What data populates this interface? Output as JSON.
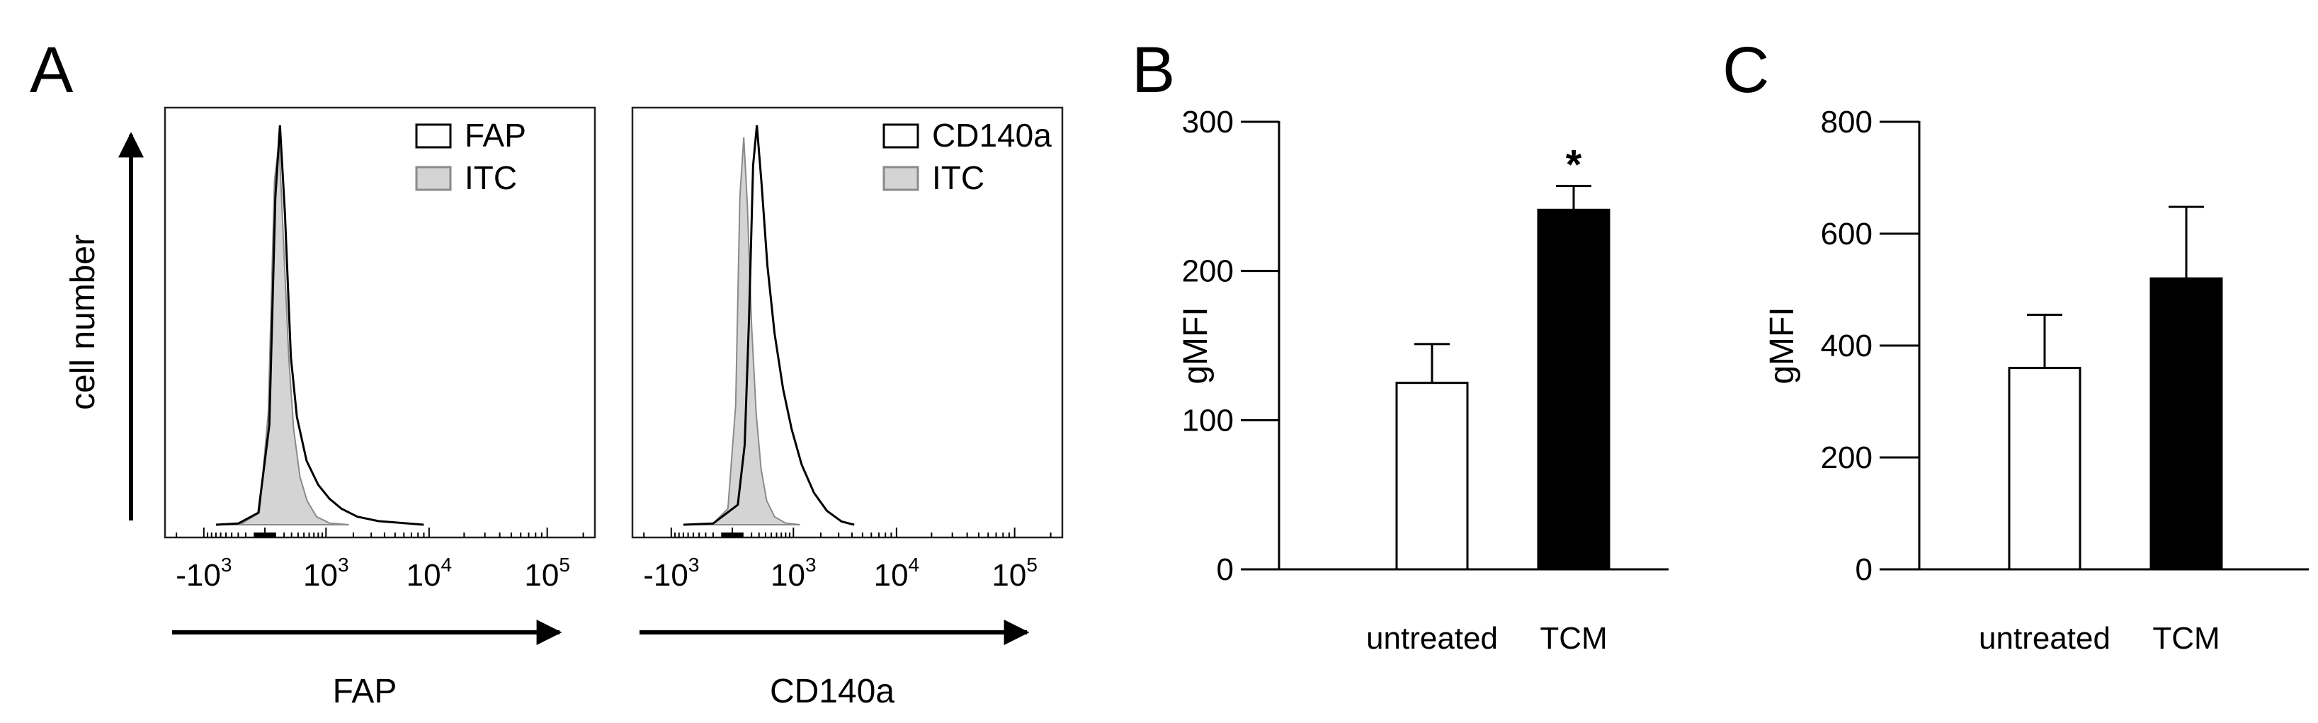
{
  "panels": {
    "A": {
      "letter": "A"
    },
    "B": {
      "letter": "B"
    },
    "C": {
      "letter": "C"
    }
  },
  "chart_data": [
    {
      "panel": "A",
      "id": "hist-fap",
      "type": "histogram",
      "xlabel": "FAP",
      "ylabel": "cell number",
      "x_ticks": [
        {
          "base": "-10",
          "exp": "3",
          "value": -1000
        },
        {
          "base": "10",
          "exp": "3",
          "value": 1000
        },
        {
          "base": "10",
          "exp": "4",
          "value": 10000
        },
        {
          "base": "10",
          "exp": "5",
          "value": 100000
        }
      ],
      "legend": [
        {
          "label": "FAP",
          "style": "open"
        },
        {
          "label": "ITC",
          "style": "filled-gray"
        }
      ],
      "series": [
        {
          "name": "FAP",
          "style": "open",
          "peak_x": 150,
          "peak_y": 1.0,
          "curve": [
            [
              -700,
              0.0
            ],
            [
              -300,
              0.003
            ],
            [
              -60,
              0.03
            ],
            [
              40,
              0.25
            ],
            [
              100,
              0.82
            ],
            [
              150,
              1.0
            ],
            [
              210,
              0.78
            ],
            [
              290,
              0.42
            ],
            [
              380,
              0.27
            ],
            [
              550,
              0.16
            ],
            [
              800,
              0.1
            ],
            [
              1100,
              0.065
            ],
            [
              1500,
              0.04
            ],
            [
              2200,
              0.02
            ],
            [
              3500,
              0.009
            ],
            [
              6000,
              0.004
            ],
            [
              9000,
              0.0
            ]
          ]
        },
        {
          "name": "ITC",
          "style": "filled-gray",
          "peak_x": 140,
          "peak_y": 0.96,
          "curve": [
            [
              -600,
              0.0
            ],
            [
              -250,
              0.003
            ],
            [
              -50,
              0.03
            ],
            [
              30,
              0.28
            ],
            [
              90,
              0.86
            ],
            [
              140,
              0.96
            ],
            [
              190,
              0.72
            ],
            [
              260,
              0.42
            ],
            [
              330,
              0.24
            ],
            [
              430,
              0.12
            ],
            [
              560,
              0.06
            ],
            [
              760,
              0.02
            ],
            [
              1100,
              0.004
            ],
            [
              1800,
              0.0
            ]
          ]
        }
      ]
    },
    {
      "panel": "A",
      "id": "hist-cd140a",
      "type": "histogram",
      "xlabel": "CD140a",
      "ylabel": "",
      "x_ticks": [
        {
          "base": "-10",
          "exp": "3",
          "value": -1000
        },
        {
          "base": "10",
          "exp": "3",
          "value": 1000
        },
        {
          "base": "10",
          "exp": "4",
          "value": 10000
        },
        {
          "base": "10",
          "exp": "5",
          "value": 100000
        }
      ],
      "legend": [
        {
          "label": "CD140a",
          "style": "open"
        },
        {
          "label": "ITC",
          "style": "filled-gray"
        }
      ],
      "series": [
        {
          "name": "CD140a",
          "style": "open",
          "peak_x": 270,
          "peak_y": 1.0,
          "curve": [
            [
              -700,
              0.0
            ],
            [
              -200,
              0.003
            ],
            [
              50,
              0.05
            ],
            [
              120,
              0.2
            ],
            [
              170,
              0.52
            ],
            [
              220,
              0.9
            ],
            [
              270,
              1.0
            ],
            [
              340,
              0.85
            ],
            [
              430,
              0.65
            ],
            [
              560,
              0.48
            ],
            [
              740,
              0.34
            ],
            [
              950,
              0.24
            ],
            [
              1250,
              0.15
            ],
            [
              1700,
              0.08
            ],
            [
              2300,
              0.035
            ],
            [
              3200,
              0.008
            ],
            [
              4200,
              0.0
            ]
          ]
        },
        {
          "name": "ITC",
          "style": "filled-gray",
          "peak_x": 110,
          "peak_y": 0.97,
          "curve": [
            [
              -600,
              0.0
            ],
            [
              -200,
              0.003
            ],
            [
              -40,
              0.04
            ],
            [
              30,
              0.3
            ],
            [
              70,
              0.82
            ],
            [
              110,
              0.97
            ],
            [
              150,
              0.8
            ],
            [
              200,
              0.5
            ],
            [
              260,
              0.28
            ],
            [
              330,
              0.14
            ],
            [
              420,
              0.06
            ],
            [
              560,
              0.02
            ],
            [
              800,
              0.004
            ],
            [
              1200,
              0.0
            ]
          ]
        }
      ]
    },
    {
      "panel": "B",
      "id": "bar-b",
      "type": "bar",
      "ylabel": "gMFI",
      "ylim": [
        0,
        300
      ],
      "yticks": [
        "0",
        "100",
        "200",
        "300"
      ],
      "categories": [
        "untreated",
        "TCM"
      ],
      "values": [
        125,
        241
      ],
      "errors": [
        26,
        16
      ],
      "fills": [
        "#ffffff",
        "#000000"
      ],
      "annotation": "*"
    },
    {
      "panel": "C",
      "id": "bar-c",
      "type": "bar",
      "ylabel": "gMFI",
      "ylim": [
        0,
        800
      ],
      "yticks": [
        "0",
        "200",
        "400",
        "600",
        "800"
      ],
      "categories": [
        "untreated",
        "TCM"
      ],
      "values": [
        360,
        520
      ],
      "errors": [
        95,
        128
      ],
      "fills": [
        "#ffffff",
        "#000000"
      ]
    }
  ]
}
